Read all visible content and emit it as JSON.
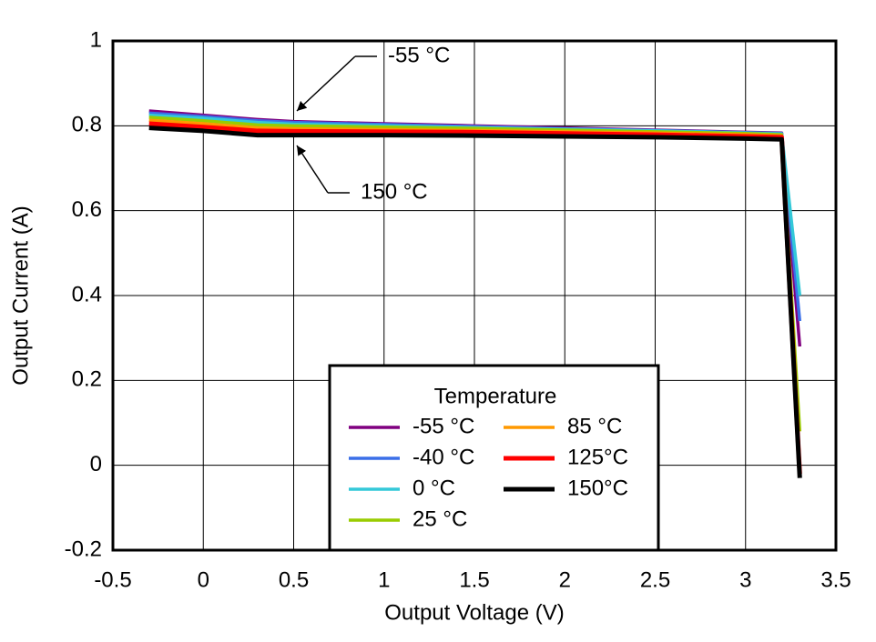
{
  "chart_data": {
    "type": "line",
    "x_label": "Output Voltage (V)",
    "y_label": "Output Current (A)",
    "xlim": [
      -0.5,
      3.5
    ],
    "ylim": [
      -0.2,
      1
    ],
    "xticks": [
      -0.5,
      0,
      0.5,
      1,
      1.5,
      2,
      2.5,
      3,
      3.5
    ],
    "yticks": [
      -0.2,
      0,
      0.2,
      0.4,
      0.6,
      0.8,
      1
    ],
    "grid": true,
    "legend_title": "Temperature",
    "x": [
      -0.3,
      0,
      0.3,
      0.5,
      1,
      1.5,
      2,
      2.5,
      3,
      3.2,
      3.3
    ],
    "series": [
      {
        "name": "-55 °C",
        "color": "#800080",
        "values": [
          0.835,
          0.825,
          0.815,
          0.81,
          0.805,
          0.8,
          0.795,
          0.79,
          0.785,
          0.783,
          0.28
        ]
      },
      {
        "name": "-40 °C",
        "color": "#3a6fe8",
        "values": [
          0.83,
          0.822,
          0.812,
          0.808,
          0.803,
          0.798,
          0.793,
          0.789,
          0.784,
          0.782,
          0.34
        ]
      },
      {
        "name": "0 °C",
        "color": "#33c8d8",
        "values": [
          0.825,
          0.818,
          0.808,
          0.804,
          0.8,
          0.796,
          0.792,
          0.788,
          0.783,
          0.781,
          0.4
        ]
      },
      {
        "name": "25 °C",
        "color": "#99cc00",
        "values": [
          0.82,
          0.812,
          0.802,
          0.8,
          0.797,
          0.794,
          0.79,
          0.786,
          0.782,
          0.779,
          0.08
        ]
      },
      {
        "name": "85 °C",
        "color": "#ff9900",
        "values": [
          0.813,
          0.805,
          0.795,
          0.793,
          0.791,
          0.789,
          0.786,
          0.783,
          0.779,
          0.776,
          0
        ]
      },
      {
        "name": "125°C",
        "color": "#ff0000",
        "values": [
          0.805,
          0.797,
          0.788,
          0.787,
          0.786,
          0.785,
          0.782,
          0.779,
          0.775,
          0.773,
          -0.02
        ]
      },
      {
        "name": "150°C",
        "color": "#000000",
        "values": [
          0.795,
          0.788,
          0.778,
          0.778,
          0.778,
          0.777,
          0.775,
          0.773,
          0.77,
          0.768,
          -0.03
        ]
      }
    ],
    "annotations": [
      "-55 °C",
      "150 °C"
    ]
  }
}
